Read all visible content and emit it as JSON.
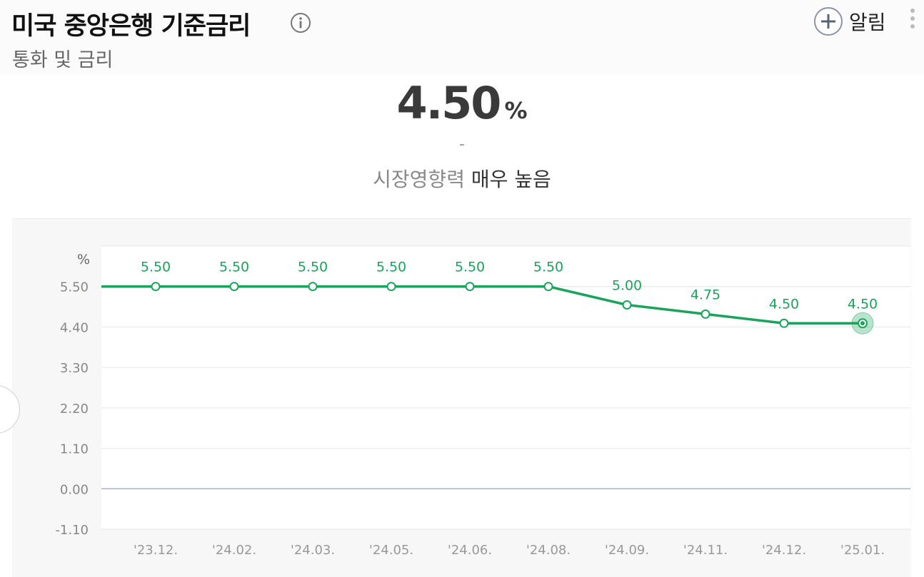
{
  "header": {
    "title": "미국 중앙은행 기준금리",
    "subtitle": "통화 및 금리",
    "alert_label": "알림"
  },
  "icons": {
    "info": "info-circle-icon",
    "add_alert": "plus-circle-icon",
    "more": "vertical-dots-icon"
  },
  "summary": {
    "value": "4.50",
    "unit": "%",
    "change": "-",
    "impact_label": "시장영향력",
    "impact_value": "매우 높음"
  },
  "colors": {
    "line": "#1aa35a",
    "zero_line": "#9db4e0",
    "grid": "#e6e6e6"
  },
  "chart_data": {
    "type": "line",
    "ylabel": "%",
    "categories": [
      "'23.12.",
      "'24.02.",
      "'24.03.",
      "'24.05.",
      "'24.06.",
      "'24.08.",
      "'24.09.",
      "'24.11.",
      "'24.12.",
      "'25.01."
    ],
    "values": [
      5.5,
      5.5,
      5.5,
      5.5,
      5.5,
      5.5,
      5.0,
      4.75,
      4.5,
      4.5
    ],
    "data_labels": [
      "5.50",
      "5.50",
      "5.50",
      "5.50",
      "5.50",
      "5.50",
      "5.00",
      "4.75",
      "4.50",
      "4.50"
    ],
    "yticks": [
      5.5,
      4.4,
      3.3,
      2.2,
      1.1,
      0.0,
      -1.1
    ],
    "ytick_labels": [
      "5.50",
      "4.40",
      "3.30",
      "2.20",
      "1.10",
      "0.00",
      "-1.10"
    ],
    "ylim": [
      -1.1,
      6.6
    ],
    "grid": true,
    "highlight_last": true
  }
}
